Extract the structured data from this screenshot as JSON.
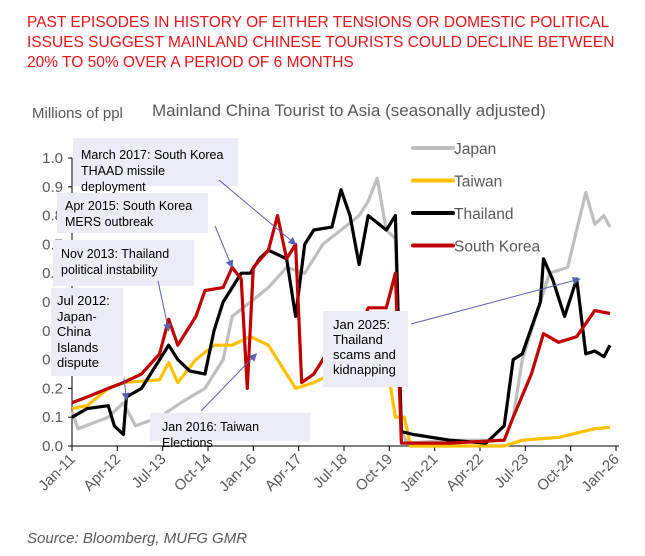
{
  "headline": "PAST EPISODES IN HISTORY OF EITHER TENSIONS OR DOMESTIC POLITICAL ISSUES SUGGEST MAINLAND CHINESE TOURISTS COULD DECLINE BETWEEN 20% TO 50% OVER A PERIOD OF 6 MONTHS",
  "source": "Source: Bloomberg, MUFG GMR",
  "chart_data": {
    "type": "line",
    "title": "Mainland China Tourist to Asia (seasonally adjusted)",
    "ylabel": "Millions of ppl",
    "xlabel": "",
    "ylim": [
      0,
      1.0
    ],
    "xlim": [
      "2011-01",
      "2026-01"
    ],
    "yticks": [
      "0.0",
      "0.1",
      "0.2",
      "0.3",
      "0.4",
      "0.5",
      "0.6",
      "0.7",
      "0.8",
      "0.9",
      "1.0"
    ],
    "xticks": [
      {
        "label": "Jan-11",
        "date": "2011-01"
      },
      {
        "label": "Apr-12",
        "date": "2012-04"
      },
      {
        "label": "Jul-13",
        "date": "2013-07"
      },
      {
        "label": "Oct-14",
        "date": "2014-10"
      },
      {
        "label": "Jan-16",
        "date": "2016-01"
      },
      {
        "label": "Apr-17",
        "date": "2017-04"
      },
      {
        "label": "Jul-18",
        "date": "2018-07"
      },
      {
        "label": "Oct-19",
        "date": "2019-10"
      },
      {
        "label": "Jan-21",
        "date": "2021-01"
      },
      {
        "label": "Apr-22",
        "date": "2022-04"
      },
      {
        "label": "Jul-23",
        "date": "2023-07"
      },
      {
        "label": "Oct-24",
        "date": "2024-10"
      },
      {
        "label": "Jan-26",
        "date": "2026-01"
      }
    ],
    "grid": false,
    "legend_position": "top-right",
    "series": [
      {
        "name": "Japan",
        "color": "#bfbfbf",
        "points": [
          [
            "2011-01",
            0.12
          ],
          [
            "2011-03",
            0.06
          ],
          [
            "2012-01",
            0.1
          ],
          [
            "2012-06",
            0.15
          ],
          [
            "2012-10",
            0.07
          ],
          [
            "2013-06",
            0.1
          ],
          [
            "2014-01",
            0.15
          ],
          [
            "2014-09",
            0.2
          ],
          [
            "2015-03",
            0.3
          ],
          [
            "2015-06",
            0.45
          ],
          [
            "2015-12",
            0.5
          ],
          [
            "2016-06",
            0.55
          ],
          [
            "2016-12",
            0.62
          ],
          [
            "2017-06",
            0.6
          ],
          [
            "2017-12",
            0.7
          ],
          [
            "2018-06",
            0.75
          ],
          [
            "2018-12",
            0.8
          ],
          [
            "2019-03",
            0.85
          ],
          [
            "2019-06",
            0.93
          ],
          [
            "2019-09",
            0.75
          ],
          [
            "2019-12",
            0.72
          ],
          [
            "2020-02",
            0.05
          ],
          [
            "2020-04",
            0.01
          ],
          [
            "2021-06",
            0.02
          ],
          [
            "2022-12",
            0.02
          ],
          [
            "2023-03",
            0.1
          ],
          [
            "2023-06",
            0.3
          ],
          [
            "2023-12",
            0.5
          ],
          [
            "2024-03",
            0.6
          ],
          [
            "2024-09",
            0.62
          ],
          [
            "2024-12",
            0.75
          ],
          [
            "2025-03",
            0.88
          ],
          [
            "2025-06",
            0.77
          ],
          [
            "2025-09",
            0.8
          ],
          [
            "2025-11",
            0.76
          ]
        ]
      },
      {
        "name": "Taiwan",
        "color": "#ffc000",
        "points": [
          [
            "2011-01",
            0.13
          ],
          [
            "2011-06",
            0.14
          ],
          [
            "2012-01",
            0.2
          ],
          [
            "2012-06",
            0.22
          ],
          [
            "2013-06",
            0.23
          ],
          [
            "2013-09",
            0.29
          ],
          [
            "2013-12",
            0.22
          ],
          [
            "2014-06",
            0.3
          ],
          [
            "2014-12",
            0.35
          ],
          [
            "2015-06",
            0.35
          ],
          [
            "2015-12",
            0.38
          ],
          [
            "2016-06",
            0.35
          ],
          [
            "2016-12",
            0.25
          ],
          [
            "2017-03",
            0.2
          ],
          [
            "2017-09",
            0.22
          ],
          [
            "2018-03",
            0.25
          ],
          [
            "2018-09",
            0.22
          ],
          [
            "2019-03",
            0.25
          ],
          [
            "2019-06",
            0.36
          ],
          [
            "2019-09",
            0.3
          ],
          [
            "2019-12",
            0.1
          ],
          [
            "2020-03",
            0.1
          ],
          [
            "2020-05",
            0.0
          ],
          [
            "2022-12",
            0.0
          ],
          [
            "2023-06",
            0.02
          ],
          [
            "2024-06",
            0.03
          ],
          [
            "2025-06",
            0.06
          ],
          [
            "2025-11",
            0.065
          ]
        ]
      },
      {
        "name": "Thailand",
        "color": "#000000",
        "points": [
          [
            "2011-01",
            0.1
          ],
          [
            "2011-06",
            0.13
          ],
          [
            "2012-01",
            0.14
          ],
          [
            "2012-03",
            0.07
          ],
          [
            "2012-06",
            0.04
          ],
          [
            "2012-07",
            0.17
          ],
          [
            "2012-12",
            0.2
          ],
          [
            "2013-06",
            0.3
          ],
          [
            "2013-09",
            0.35
          ],
          [
            "2013-12",
            0.3
          ],
          [
            "2014-04",
            0.26
          ],
          [
            "2014-09",
            0.25
          ],
          [
            "2014-12",
            0.4
          ],
          [
            "2015-03",
            0.5
          ],
          [
            "2015-06",
            0.55
          ],
          [
            "2015-09",
            0.6
          ],
          [
            "2015-12",
            0.6
          ],
          [
            "2016-03",
            0.65
          ],
          [
            "2016-06",
            0.68
          ],
          [
            "2016-12",
            0.65
          ],
          [
            "2017-03",
            0.45
          ],
          [
            "2017-06",
            0.7
          ],
          [
            "2017-09",
            0.75
          ],
          [
            "2018-03",
            0.76
          ],
          [
            "2018-06",
            0.89
          ],
          [
            "2018-09",
            0.8
          ],
          [
            "2018-12",
            0.63
          ],
          [
            "2019-03",
            0.8
          ],
          [
            "2019-09",
            0.75
          ],
          [
            "2019-12",
            0.8
          ],
          [
            "2020-02",
            0.05
          ],
          [
            "2020-06",
            0.04
          ],
          [
            "2021-06",
            0.02
          ],
          [
            "2022-06",
            0.01
          ],
          [
            "2022-12",
            0.07
          ],
          [
            "2023-03",
            0.3
          ],
          [
            "2023-06",
            0.32
          ],
          [
            "2023-12",
            0.5
          ],
          [
            "2024-01",
            0.65
          ],
          [
            "2024-04",
            0.58
          ],
          [
            "2024-08",
            0.45
          ],
          [
            "2024-12",
            0.58
          ],
          [
            "2025-03",
            0.32
          ],
          [
            "2025-06",
            0.33
          ],
          [
            "2025-09",
            0.31
          ],
          [
            "2025-11",
            0.35
          ]
        ]
      },
      {
        "name": "South Korea",
        "color": "#c00000",
        "points": [
          [
            "2011-01",
            0.15
          ],
          [
            "2011-06",
            0.17
          ],
          [
            "2012-01",
            0.2
          ],
          [
            "2012-06",
            0.22
          ],
          [
            "2012-12",
            0.25
          ],
          [
            "2013-06",
            0.32
          ],
          [
            "2013-09",
            0.44
          ],
          [
            "2013-12",
            0.35
          ],
          [
            "2014-06",
            0.45
          ],
          [
            "2014-09",
            0.54
          ],
          [
            "2015-03",
            0.55
          ],
          [
            "2015-06",
            0.62
          ],
          [
            "2015-09",
            0.58
          ],
          [
            "2015-11",
            0.2
          ],
          [
            "2016-01",
            0.62
          ],
          [
            "2016-06",
            0.68
          ],
          [
            "2016-09",
            0.8
          ],
          [
            "2016-12",
            0.65
          ],
          [
            "2017-03",
            0.7
          ],
          [
            "2017-05",
            0.22
          ],
          [
            "2017-09",
            0.25
          ],
          [
            "2018-03",
            0.35
          ],
          [
            "2018-06",
            0.38
          ],
          [
            "2018-12",
            0.4
          ],
          [
            "2019-03",
            0.48
          ],
          [
            "2019-09",
            0.48
          ],
          [
            "2019-12",
            0.6
          ],
          [
            "2020-02",
            0.01
          ],
          [
            "2021-06",
            0.01
          ],
          [
            "2022-12",
            0.02
          ],
          [
            "2023-03",
            0.1
          ],
          [
            "2023-09",
            0.25
          ],
          [
            "2024-01",
            0.39
          ],
          [
            "2024-06",
            0.36
          ],
          [
            "2024-12",
            0.38
          ],
          [
            "2025-06",
            0.47
          ],
          [
            "2025-11",
            0.46
          ]
        ]
      }
    ],
    "annotations": [
      {
        "text": "March 2017: South Korea THAAD missile deployment",
        "lines": [
          "March 2017: South Korea",
          "THAAD missile deployment"
        ],
        "arrow_to": [
          "2017-03",
          0.7
        ]
      },
      {
        "text": "Apr 2015: South Korea MERS outbreak",
        "lines": [
          "Apr 2015: South Korea",
          "MERS outbreak"
        ],
        "arrow_to": [
          "2015-06",
          0.62
        ]
      },
      {
        "text": "Nov 2013: Thailand political instability",
        "lines": [
          "Nov 2013: Thailand",
          "political instability"
        ],
        "arrow_to": [
          "2013-09",
          0.4
        ]
      },
      {
        "text": "Jul 2012: Japan-China Islands dispute",
        "lines": [
          "Jul 2012:",
          "Japan-",
          "China",
          "Islands",
          "dispute"
        ],
        "arrow_to": [
          "2012-07",
          0.16
        ]
      },
      {
        "text": "Jan 2016: Taiwan Elections",
        "lines": [
          "Jan 2016: Taiwan Elections"
        ],
        "arrow_to": [
          "2016-02",
          0.32
        ]
      },
      {
        "text": "Jan 2025: Thailand scams and kidnapping",
        "lines": [
          "Jan 2025:",
          "Thailand",
          "scams and",
          "kidnapping"
        ],
        "arrow_to": [
          "2025-01",
          0.58
        ]
      }
    ]
  }
}
